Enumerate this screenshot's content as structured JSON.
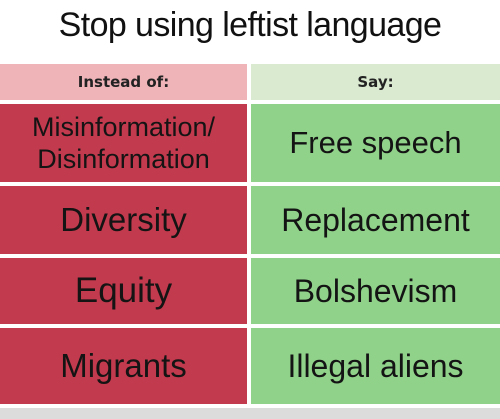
{
  "title": "Stop using leftist language",
  "headers": {
    "left": "Instead of:",
    "right": "Say:"
  },
  "rows": [
    {
      "instead": [
        "Misinformation/",
        "Disinformation"
      ],
      "say": "Free speech"
    },
    {
      "instead": [
        "Diversity"
      ],
      "say": "Replacement"
    },
    {
      "instead": [
        "Equity"
      ],
      "say": "Bolshevism"
    },
    {
      "instead": [
        "Migrants"
      ],
      "say": "Illegal aliens"
    }
  ],
  "colors": {
    "left_header": "#eeb4b8",
    "right_header": "#d9ead0",
    "left_cells": "#c23a4d",
    "right_cells": "#90d28a"
  }
}
